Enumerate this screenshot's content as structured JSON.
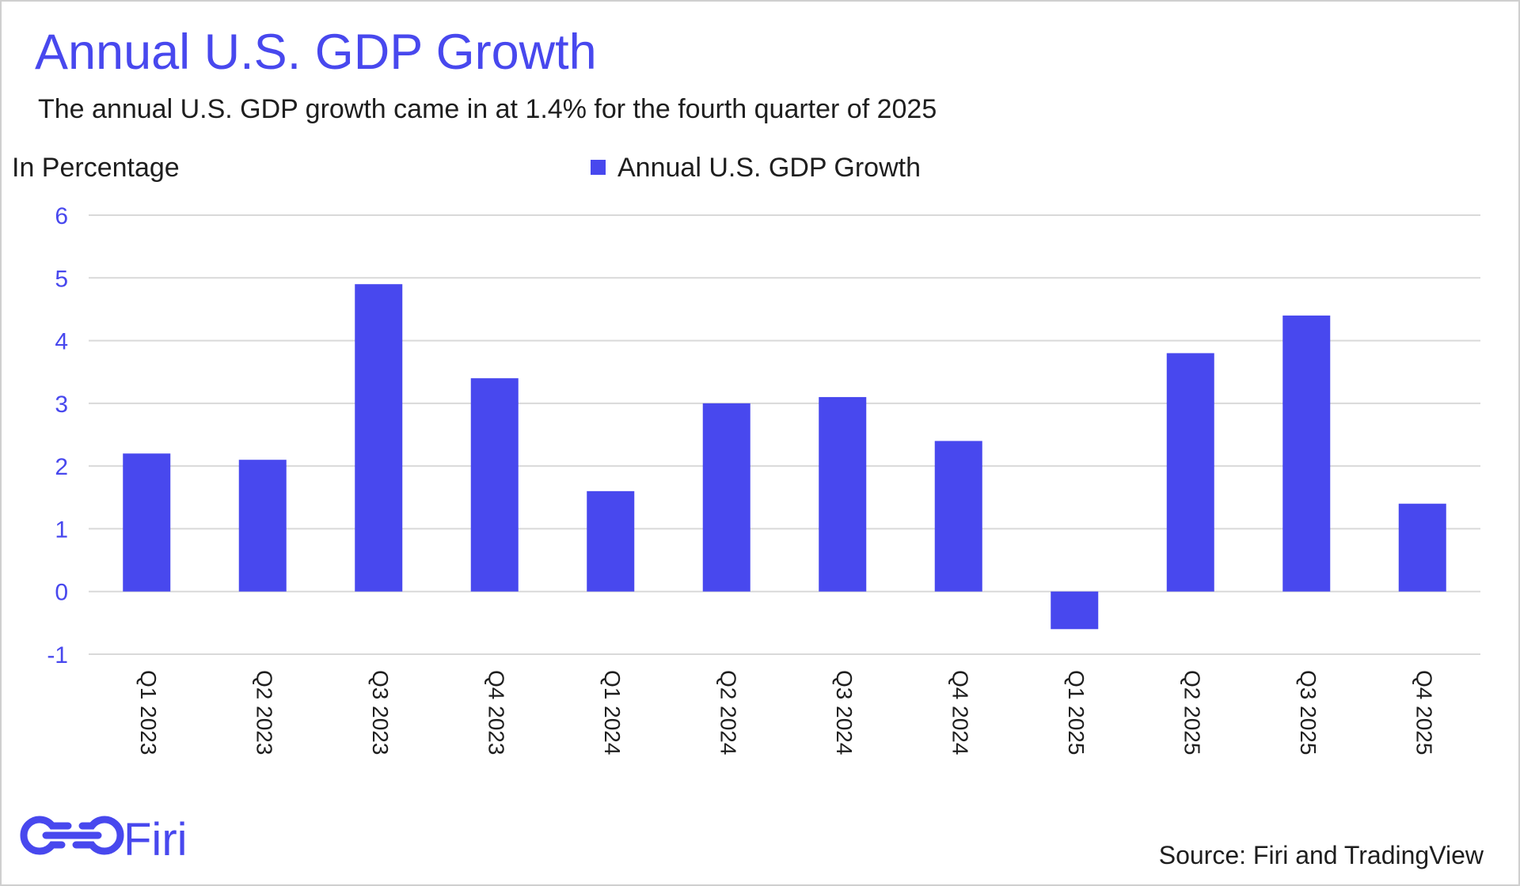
{
  "colors": {
    "accent": "#4848ee",
    "text": "#1e1e1e",
    "grid": "#d9d9d9",
    "background": "#ffffff"
  },
  "logo": {
    "text": "Firi",
    "icon": "firi-logo-icon"
  },
  "source": "Source: Firi and TradingView",
  "chart_data": {
    "type": "bar",
    "title": "Annual U.S. GDP Growth",
    "subtitle": "The annual U.S. GDP growth came in at 1.4% for the fourth quarter of 2025",
    "xlabel": "",
    "ylabel": "In Percentage",
    "ylim": [
      -1,
      6
    ],
    "yticks": [
      6,
      5,
      4,
      3,
      2,
      1,
      0,
      -1
    ],
    "grid": true,
    "legend_position": "top-center",
    "categories": [
      "Q1 2023",
      "Q2 2023",
      "Q3 2023",
      "Q4 2023",
      "Q1 2024",
      "Q2 2024",
      "Q3 2024",
      "Q4 2024",
      "Q1 2025",
      "Q2 2025",
      "Q3 2025",
      "Q4 2025"
    ],
    "series": [
      {
        "name": "Annual U.S. GDP Growth",
        "color": "#4848ee",
        "values": [
          2.2,
          2.1,
          4.9,
          3.4,
          1.6,
          3.0,
          3.1,
          2.4,
          -0.6,
          3.8,
          4.4,
          1.4
        ]
      }
    ]
  }
}
